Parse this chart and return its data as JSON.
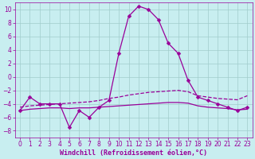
{
  "hours": [
    0,
    1,
    2,
    3,
    4,
    5,
    6,
    7,
    8,
    9,
    10,
    11,
    12,
    13,
    14,
    15,
    16,
    17,
    18,
    19,
    20,
    21,
    22,
    23
  ],
  "windchill": [
    -5,
    -3,
    -4,
    -4,
    -4,
    -7.5,
    -5,
    -6,
    -4.5,
    -3.5,
    3.5,
    9,
    10.5,
    10,
    8.5,
    5,
    3.5,
    -0.5,
    -3,
    -3.5,
    -4,
    -4.5,
    -5,
    -4.5
  ],
  "line_upper": [
    -4.5,
    -4.3,
    -4.2,
    -4.1,
    -4.0,
    -3.9,
    -3.8,
    -3.7,
    -3.5,
    -3.2,
    -3.0,
    -2.7,
    -2.5,
    -2.3,
    -2.2,
    -2.1,
    -2.0,
    -2.2,
    -2.8,
    -3.0,
    -3.2,
    -3.3,
    -3.4,
    -2.8
  ],
  "line_lower": [
    -5.0,
    -4.8,
    -4.7,
    -4.6,
    -4.6,
    -4.7,
    -4.6,
    -4.6,
    -4.5,
    -4.4,
    -4.3,
    -4.2,
    -4.1,
    -4.0,
    -3.9,
    -3.8,
    -3.8,
    -3.9,
    -4.3,
    -4.5,
    -4.6,
    -4.7,
    -4.9,
    -4.8
  ],
  "bg_color": "#c8eef0",
  "grid_color": "#a0cccc",
  "line_color": "#990099",
  "xlabel": "Windchill (Refroidissement éolien,°C)",
  "ylim": [
    -9,
    11
  ],
  "xlim": [
    -0.5,
    23.5
  ],
  "yticks": [
    -8,
    -6,
    -4,
    -2,
    0,
    2,
    4,
    6,
    8,
    10
  ],
  "xticks": [
    0,
    1,
    2,
    3,
    4,
    5,
    6,
    7,
    8,
    9,
    10,
    11,
    12,
    13,
    14,
    15,
    16,
    17,
    18,
    19,
    20,
    21,
    22,
    23
  ],
  "marker": "D",
  "markersize": 2.5,
  "linewidth": 0.9,
  "tick_labelsize": 5.5,
  "xlabel_fontsize": 6.0
}
